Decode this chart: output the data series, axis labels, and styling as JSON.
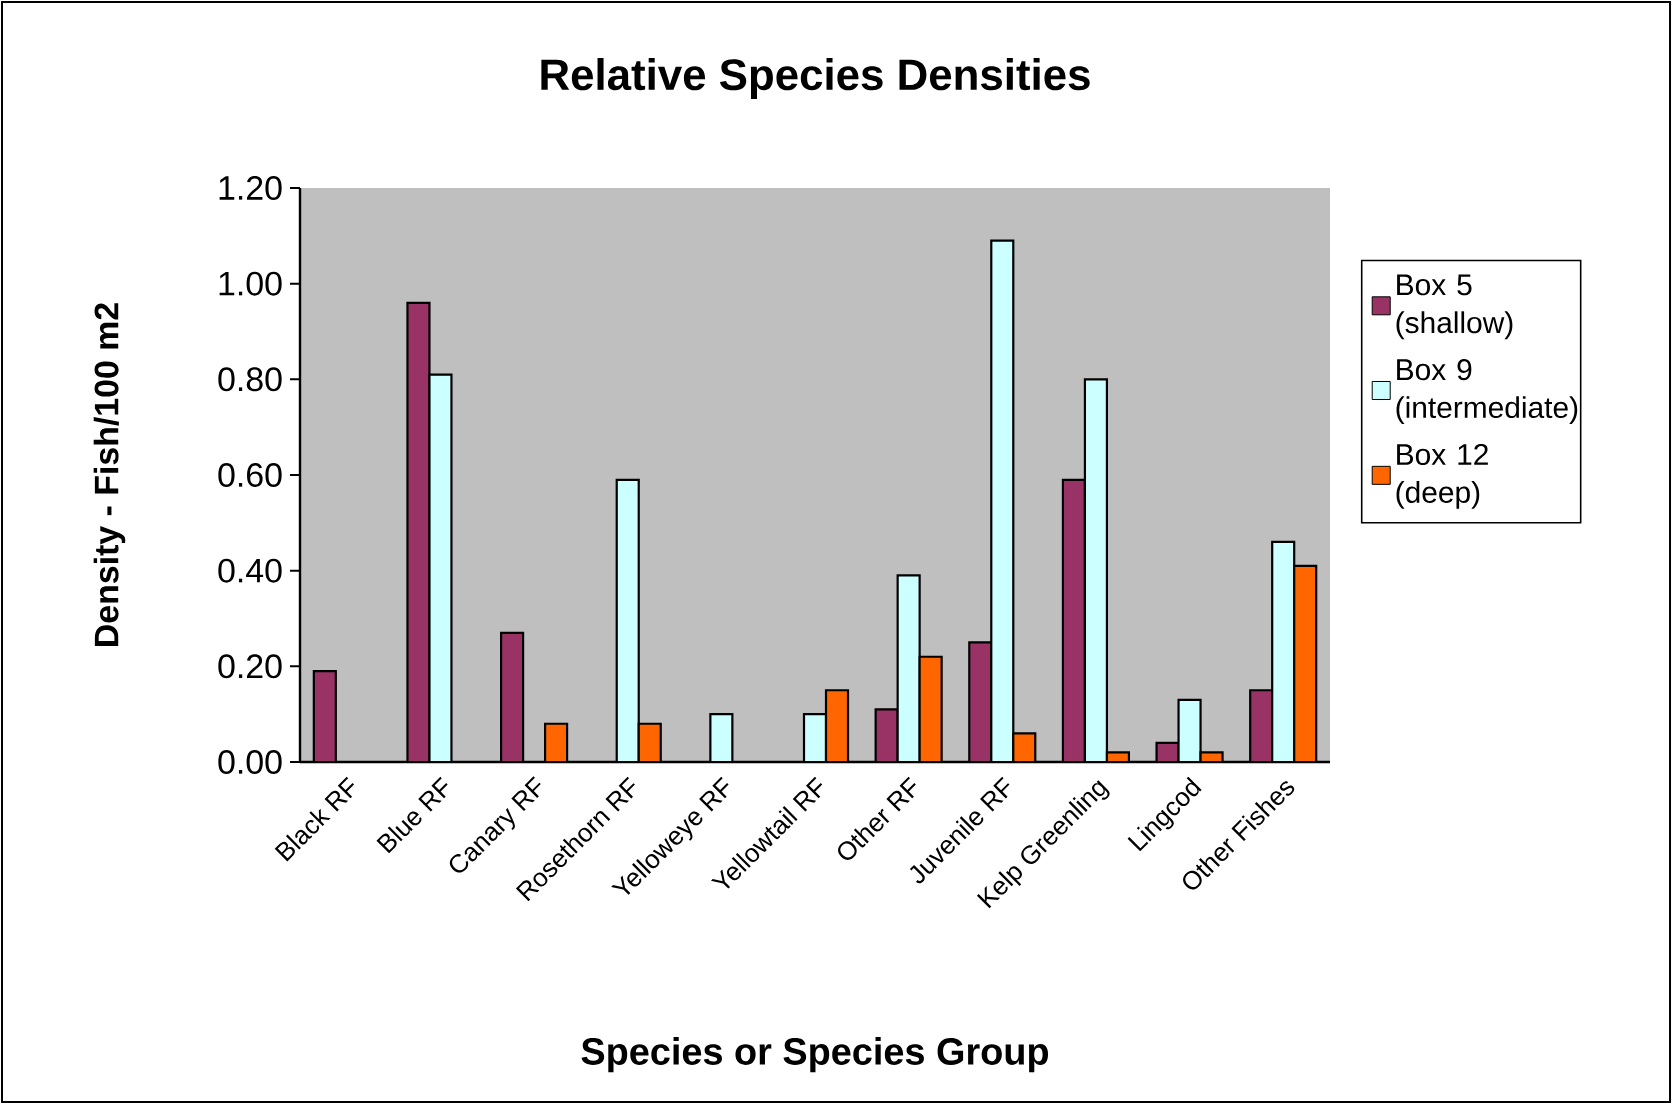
{
  "chart_data": {
    "type": "bar",
    "title": "Relative Species Densities",
    "xlabel": "Species or Species Group",
    "ylabel": "Density - Fish/100 m2",
    "categories": [
      "Black RF",
      "Blue RF",
      "Canary RF",
      "Rosethorn RF",
      "Yelloweye RF",
      "Yellowtail RF",
      "Other RF",
      "Juvenile RF",
      "Kelp Greenling",
      "Lingcod",
      "Other Fishes"
    ],
    "series": [
      {
        "name": "Box 5 (shallow)",
        "color": "#993366",
        "values": [
          0.19,
          0.96,
          0.27,
          null,
          null,
          null,
          0.11,
          0.25,
          0.59,
          0.04,
          0.15
        ]
      },
      {
        "name": "Box 9 (intermediate)",
        "color": "#ccffff",
        "values": [
          null,
          0.81,
          null,
          0.59,
          0.1,
          0.1,
          0.39,
          1.09,
          0.8,
          0.13,
          0.46
        ]
      },
      {
        "name": "Box 12 (deep)",
        "color": "#ff6600",
        "values": [
          null,
          null,
          0.08,
          0.08,
          null,
          0.15,
          0.22,
          0.06,
          0.02,
          0.02,
          0.41
        ]
      }
    ],
    "ylim": [
      0,
      1.2
    ],
    "yticks": [
      {
        "value": 0,
        "label": "0.00"
      },
      {
        "value": 0.2,
        "label": "0.20"
      },
      {
        "value": 0.4,
        "label": "0.40"
      },
      {
        "value": 0.6,
        "label": "0.60"
      },
      {
        "value": 0.8,
        "label": "0.80"
      },
      {
        "value": 1.0,
        "label": "1.00"
      },
      {
        "value": 1.2,
        "label": "1.20"
      }
    ],
    "legend": "right"
  }
}
